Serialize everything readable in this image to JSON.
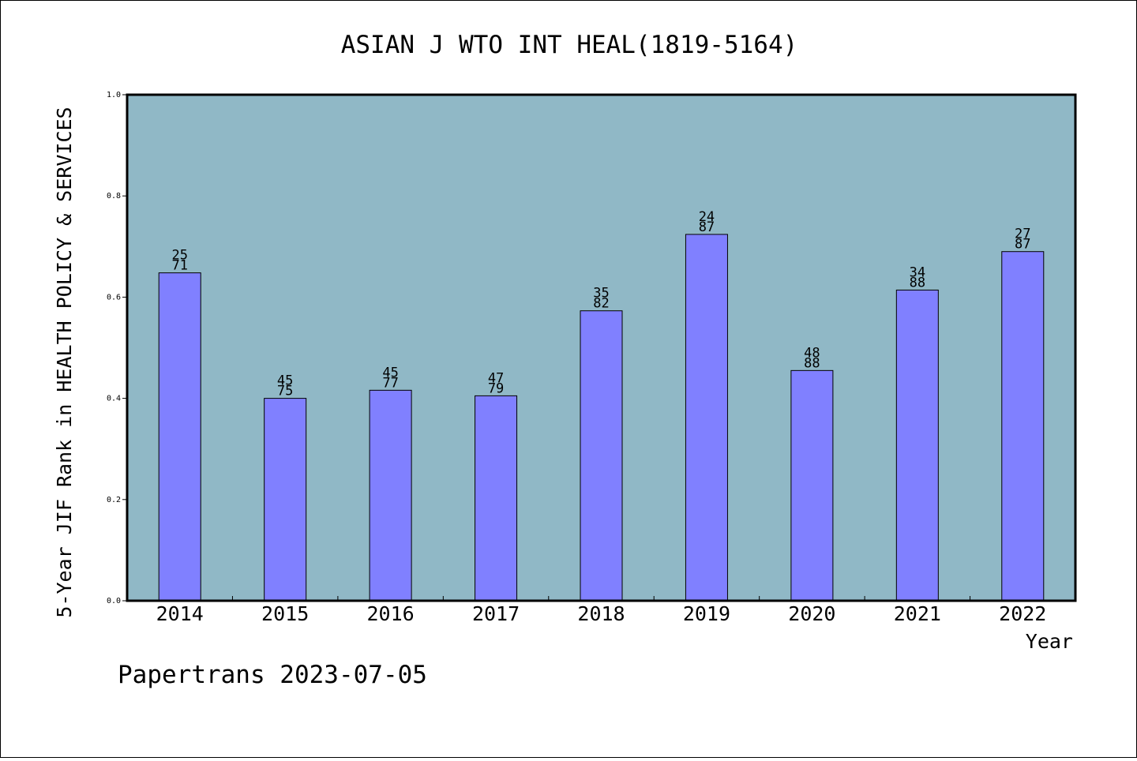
{
  "chart_data": {
    "type": "bar",
    "title": "ASIAN J WTO INT HEAL(1819-5164)",
    "xlabel": "Year",
    "ylabel": "5-Year JIF Rank in HEALTH POLICY & SERVICES",
    "ylim": [
      0,
      1.0
    ],
    "yticks": [
      "0.0",
      "0.2",
      "0.4",
      "0.6",
      "0.8",
      "1.0"
    ],
    "categories": [
      "2014",
      "2015",
      "2016",
      "2017",
      "2018",
      "2019",
      "2020",
      "2021",
      "2022"
    ],
    "values": [
      0.648,
      0.4,
      0.416,
      0.405,
      0.573,
      0.724,
      0.455,
      0.614,
      0.69
    ],
    "labels": [
      [
        "25",
        "71"
      ],
      [
        "45",
        "75"
      ],
      [
        "45",
        "77"
      ],
      [
        "47",
        "79"
      ],
      [
        "35",
        "82"
      ],
      [
        "24",
        "87"
      ],
      [
        "48",
        "88"
      ],
      [
        "34",
        "88"
      ],
      [
        "27",
        "87"
      ]
    ],
    "bar_color": "#8080ff",
    "plot_bg": "#90b8c6",
    "grid": false
  },
  "footer": "Papertrans 2023-07-05"
}
